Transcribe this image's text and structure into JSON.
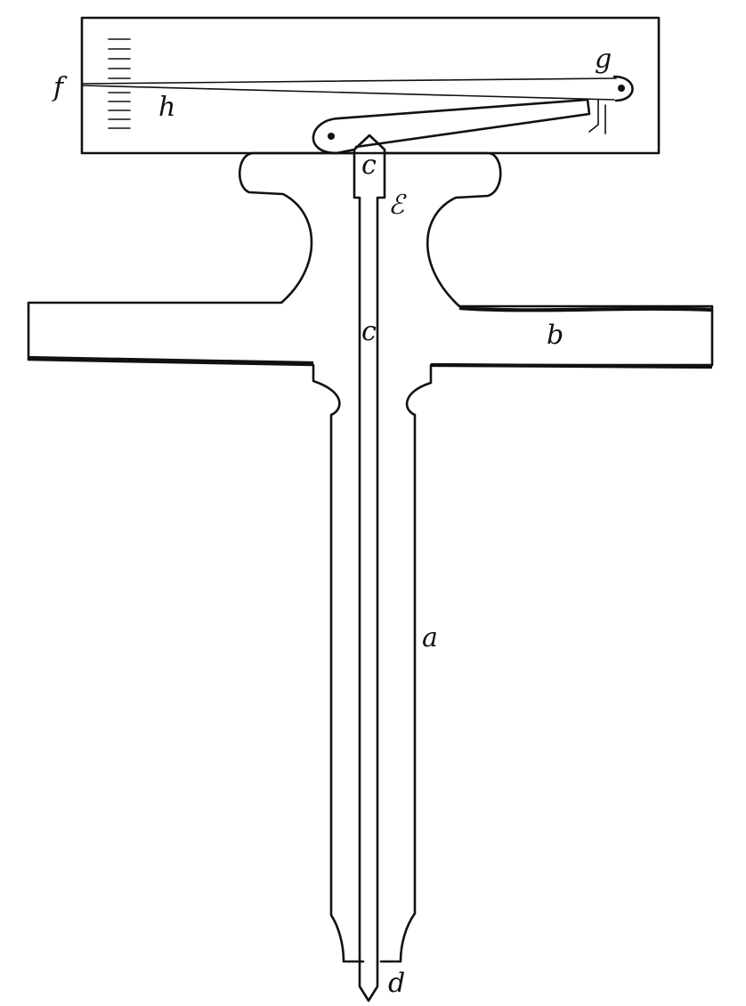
{
  "figure": {
    "labels": {
      "f": "f",
      "g": "g",
      "h": "h",
      "c_top": "c",
      "e": "ℰ",
      "c_mid": "c",
      "b": "b",
      "a": "a",
      "d": "d"
    },
    "scale_ticks": {
      "upper_count": 5,
      "lower_count": 5
    }
  }
}
